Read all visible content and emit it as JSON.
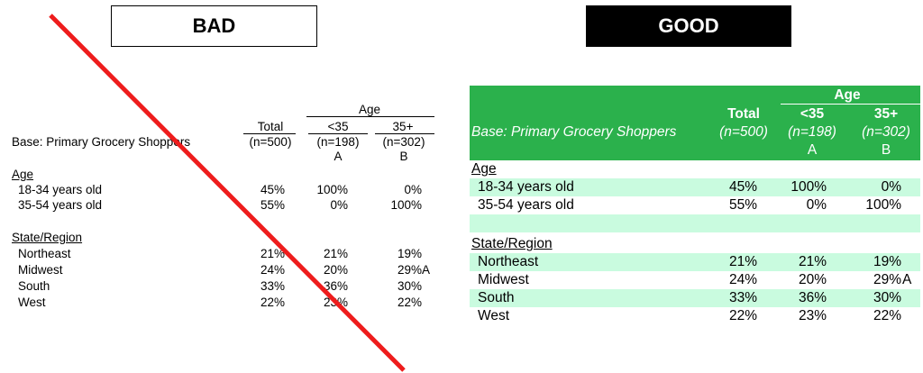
{
  "headers": {
    "bad": "BAD",
    "good": "GOOD"
  },
  "table": {
    "base_label": "Base: Primary Grocery Shoppers",
    "age_group": "Age",
    "total": {
      "label": "Total",
      "n": "(n=500)"
    },
    "under35": {
      "label": "<35",
      "n": "(n=198)",
      "letter": "A"
    },
    "over35": {
      "label": "35+",
      "n": "(n=302)",
      "letter": "B"
    },
    "sections": [
      {
        "title": "Age",
        "rows": [
          {
            "label": "18-34 years old",
            "total": "45%",
            "under35": "100%",
            "over35": "0%"
          },
          {
            "label": "35-54 years old",
            "total": "55%",
            "under35": "0%",
            "over35": "100%"
          }
        ]
      },
      {
        "title": "State/Region",
        "rows": [
          {
            "label": "Northeast",
            "total": "21%",
            "under35": "21%",
            "over35": "19%"
          },
          {
            "label": "Midwest",
            "total": "24%",
            "under35": "20%",
            "over35": "29%",
            "sig": "A"
          },
          {
            "label": "South",
            "total": "33%",
            "under35": "36%",
            "over35": "30%"
          },
          {
            "label": "West",
            "total": "22%",
            "under35": "23%",
            "over35": "22%"
          }
        ]
      }
    ]
  },
  "colors": {
    "good_header": "#2bb14c",
    "band": "#c9fbdf",
    "strike": "#ee1c1c"
  },
  "icons": {
    "strike": "red-diagonal-strike"
  }
}
